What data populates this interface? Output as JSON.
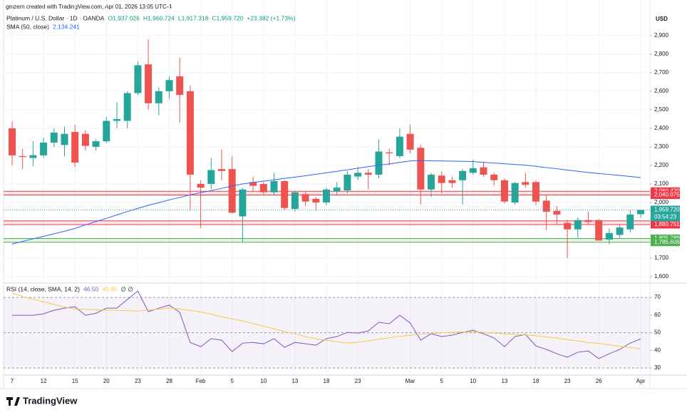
{
  "header": {
    "watermark": "gmzern created with TradingView.com, Apr 01, 2026 13:05 UTC-4",
    "symbol": "Platinum / U.S. Dollar · 1D · OANDA",
    "ohlc": [
      "O1,937.026",
      "H1,960.724",
      "L1,917.318",
      "C1,959.720",
      "+23.382 (+1.73%)"
    ]
  },
  "footer": {
    "brand": "TradingView"
  },
  "chart_data": [
    {
      "type": "candlestick",
      "unit": "USD",
      "up_color": "#26a69a",
      "down_color": "#ef5350",
      "grid": true,
      "categories": [
        "7",
        null,
        null,
        "12",
        null,
        null,
        "15",
        null,
        null,
        "20",
        null,
        null,
        "23",
        null,
        null,
        "28",
        null,
        null,
        "Feb",
        null,
        null,
        "5",
        null,
        null,
        "10",
        null,
        null,
        "13",
        null,
        null,
        "18",
        null,
        null,
        "23",
        null,
        null,
        null,
        null,
        "Mar",
        null,
        null,
        "5",
        null,
        null,
        "10",
        null,
        null,
        "13",
        null,
        null,
        "18",
        null,
        null,
        "23",
        null,
        null,
        "26",
        null,
        null,
        null,
        "Apr"
      ],
      "open": [
        2400,
        2250,
        2240,
        2254,
        2323,
        2310,
        2380,
        2370,
        2300,
        2330,
        2440,
        2440,
        2590,
        2745,
        2535,
        2600,
        2680,
        2600,
        2100,
        2100,
        2180,
        2180,
        1925,
        2110,
        2100,
        2055,
        2115,
        1965,
        2045,
        2020,
        2000,
        2060,
        2065,
        2140,
        2160,
        2150,
        2270,
        2250,
        2370,
        2295,
        2070,
        2145,
        2120,
        2120,
        2160,
        2190,
        2150,
        2120,
        2000,
        2110,
        2110,
        2010,
        1955,
        1890,
        1855,
        1905,
        1905,
        1800,
        1825,
        1855,
        1937.026
      ],
      "high": [
        2438,
        2290,
        2330,
        2350,
        2400,
        2410,
        2420,
        2390,
        2340,
        2460,
        2540,
        2600,
        2760,
        2880,
        2620,
        2680,
        2780,
        2630,
        2120,
        2240,
        2285,
        2250,
        2080,
        2140,
        2110,
        2160,
        2120,
        2060,
        2060,
        2030,
        2080,
        2110,
        2170,
        2190,
        2180,
        2340,
        2290,
        2400,
        2420,
        2310,
        2160,
        2170,
        2140,
        2180,
        2230,
        2220,
        2160,
        2130,
        2110,
        2160,
        2120,
        2040,
        1980,
        1905,
        1920,
        1950,
        1910,
        1860,
        1880,
        1960,
        1960.724
      ],
      "low": [
        2200,
        2180,
        2195,
        2240,
        2300,
        2250,
        2190,
        2280,
        2280,
        2320,
        2400,
        2400,
        2580,
        2500,
        2470,
        2560,
        2430,
        1955,
        1860,
        2070,
        2120,
        1940,
        1785,
        2060,
        2040,
        2040,
        1960,
        1950,
        1980,
        1955,
        1985,
        2040,
        2050,
        2120,
        2070,
        2130,
        2200,
        2240,
        2265,
        1990,
        2030,
        2050,
        2080,
        1990,
        2150,
        2140,
        2090,
        1995,
        1990,
        2080,
        1985,
        1850,
        1885,
        1700,
        1810,
        1880,
        1795,
        1775,
        1810,
        1840,
        1917.318
      ],
      "close": [
        2254,
        2245,
        2255,
        2323,
        2377,
        2370,
        2215,
        2305,
        2330,
        2440,
        2450,
        2590,
        2740,
        2535,
        2600,
        2660,
        2580,
        2150,
        2080,
        2175,
        2170,
        1945,
        2070,
        2090,
        2055,
        2115,
        1970,
        2055,
        2005,
        2000,
        2070,
        2080,
        2150,
        2160,
        2150,
        2275,
        2265,
        2355,
        2285,
        2070,
        2150,
        2105,
        2105,
        2170,
        2185,
        2150,
        2120,
        2005,
        2105,
        2095,
        2005,
        1950,
        1935,
        1855,
        1905,
        1895,
        1795,
        1835,
        1865,
        1935,
        1959.72
      ],
      "overlays": [
        {
          "name": "SMA (50, close)",
          "legend_value": "2,134.241",
          "color": "#2962ff",
          "values": [
            1776,
            1790,
            1804,
            1817,
            1831,
            1845,
            1860,
            1879,
            1897,
            1914,
            1933,
            1951,
            1968,
            1985,
            1999,
            2014,
            2027,
            2041,
            2053,
            2064,
            2076,
            2089,
            2100,
            2108,
            2115,
            2122,
            2130,
            2137,
            2144,
            2152,
            2160,
            2168,
            2176,
            2185,
            2193,
            2201,
            2208,
            2216,
            2224,
            2226,
            2225,
            2224,
            2223,
            2222,
            2221,
            2216,
            2213,
            2209,
            2205,
            2201,
            2195,
            2188,
            2182,
            2175,
            2168,
            2162,
            2156,
            2151,
            2146,
            2140,
            2134.241
          ]
        }
      ],
      "zones": [
        {
          "values": [
            2060.47,
            2040.075
          ],
          "value_labels": [
            "2,060.470",
            "2,040.075"
          ],
          "color": "#f23645"
        },
        {
          "values": [
            1900.933,
            1880.751
          ],
          "value_labels": [
            "1,900.933",
            "1,880.751"
          ],
          "color": "#f23645"
        },
        {
          "values": [
            1805.789,
            1785.606
          ],
          "value_labels": [
            "1,805.789",
            "1,785.606"
          ],
          "color": "#4caf50"
        }
      ],
      "last_price": {
        "value": 1959.72,
        "label": "1,959.720",
        "countdown": "03:54:23",
        "color": "#26a69a"
      },
      "ylim": [
        1573,
        3015
      ],
      "yticks": [
        {
          "value": 1600,
          "label": "1,600"
        },
        {
          "value": 1700,
          "label": "1,700"
        },
        {
          "value": 1800,
          "label": "1,800"
        },
        {
          "value": 1900,
          "label": "1,900"
        },
        {
          "value": 2000,
          "label": "2,000"
        },
        {
          "value": 2100,
          "label": "2,100"
        },
        {
          "value": 2200,
          "label": "2,200"
        },
        {
          "value": 2300,
          "label": "2,300"
        },
        {
          "value": 2400,
          "label": "2,400"
        },
        {
          "value": 2500,
          "label": "2,500"
        },
        {
          "value": 2600,
          "label": "2,600"
        },
        {
          "value": 2700,
          "label": "2,700"
        },
        {
          "value": 2800,
          "label": "2,800"
        },
        {
          "value": 2900,
          "label": "2,900"
        }
      ]
    },
    {
      "type": "line",
      "title": "RSI (14, close, SMA, 14, 2)",
      "extra": "∅ ∅",
      "grid": false,
      "band": [
        30,
        70
      ],
      "band_color": "#7e57c2",
      "dashed_levels": [
        70,
        50,
        30
      ],
      "series": [
        {
          "legend_value": "46.50",
          "color": "#7e57c2",
          "values": [
            59.9,
            59.9,
            59.9,
            60.7,
            62.7,
            63.9,
            64.7,
            59.9,
            61.0,
            63.9,
            63.9,
            68.8,
            73.6,
            61.9,
            63.9,
            65.6,
            61.5,
            44.5,
            42.1,
            46.6,
            45.8,
            39.3,
            44.1,
            44.5,
            43.7,
            46.6,
            41.7,
            44.5,
            43.7,
            42.9,
            46.6,
            47.8,
            50.2,
            49.8,
            51.0,
            55.9,
            55.1,
            59.9,
            55.5,
            45.8,
            49.4,
            47.8,
            48.6,
            50.2,
            51.4,
            49.4,
            47.0,
            42.1,
            47.8,
            49.0,
            42.5,
            40.5,
            38.1,
            36.1,
            38.9,
            39.7,
            35.3,
            38.1,
            40.5,
            44.1,
            46.5
          ]
        },
        {
          "legend_value": "40.85",
          "color": "#f7c948",
          "values": [
            72.5,
            70.5,
            69,
            67.5,
            66,
            64.5,
            63.4,
            63.2,
            63,
            62.8,
            62.6,
            62.5,
            62.3,
            62.8,
            63.3,
            64,
            63.4,
            62.6,
            61.8,
            60.5,
            59,
            57.8,
            56.7,
            55.2,
            53.7,
            52.2,
            50.7,
            49.3,
            47.8,
            46.5,
            45.8,
            44.9,
            44.2,
            44.5,
            45.4,
            46.3,
            47.1,
            47.9,
            48.5,
            49.1,
            49.6,
            50,
            50.2,
            50.4,
            50.6,
            50.2,
            49.8,
            49.4,
            49,
            48.7,
            48.3,
            47.6,
            46.9,
            46.1,
            45.3,
            44.5,
            43.9,
            43.1,
            42.3,
            41.6,
            40.85
          ]
        }
      ],
      "ylim": [
        26.4,
        76.9
      ],
      "yticks": [
        30,
        40,
        50,
        60,
        70
      ]
    }
  ]
}
